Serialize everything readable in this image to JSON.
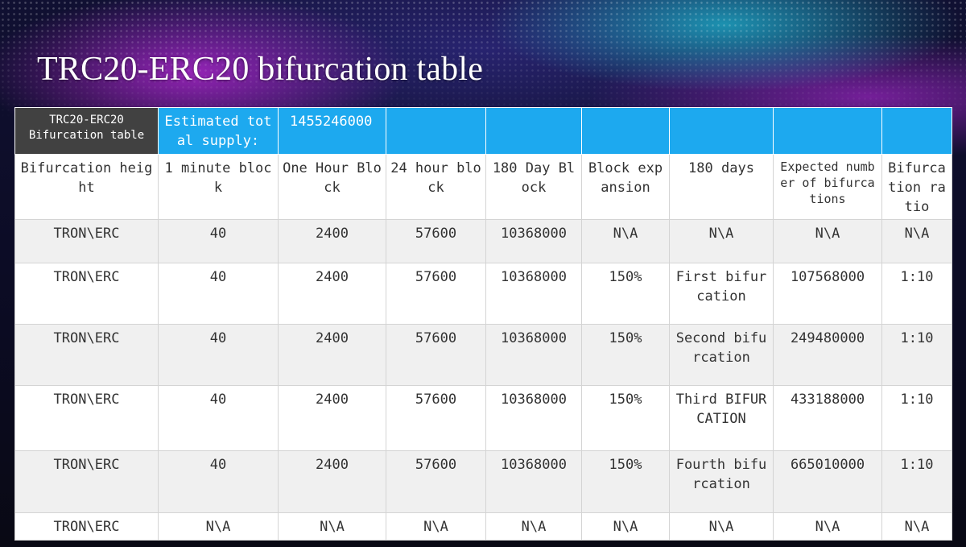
{
  "slide": {
    "title": "TRC20-ERC20 bifurcation table"
  },
  "table": {
    "header": {
      "corner_line1": "TRC20-ERC20",
      "corner_line2": "Bifurcation table",
      "estimated_label": "Estimated total supply:",
      "estimated_value": "1455246000"
    },
    "columns": [
      "Bifurcation height",
      "1 minute block",
      "One Hour Block",
      "24 hour block",
      "180 Day Block",
      "Block expansion",
      "180 days",
      "Expected number of bifurcations",
      "Bifurcation ratio"
    ],
    "rows": [
      [
        "TRON\\ERC",
        "40",
        "2400",
        "57600",
        "10368000",
        "N\\A",
        "N\\A",
        "N\\A",
        "N\\A"
      ],
      [
        "TRON\\ERC",
        "40",
        "2400",
        "57600",
        "10368000",
        "150%",
        "First bifurcation",
        "107568000",
        "1:10"
      ],
      [
        "TRON\\ERC",
        "40",
        "2400",
        "57600",
        "10368000",
        "150%",
        "Second bifurcation",
        "249480000",
        "1:10"
      ],
      [
        "TRON\\ERC",
        "40",
        "2400",
        "57600",
        "10368000",
        "150%",
        "Third BIFURCATION",
        "433188000",
        "1:10"
      ],
      [
        "TRON\\ERC",
        "40",
        "2400",
        "57600",
        "10368000",
        "150%",
        "Fourth bifurcation",
        "665010000",
        "1:10"
      ],
      [
        "TRON\\ERC",
        "N\\A",
        "N\\A",
        "N\\A",
        "N\\A",
        "N\\A",
        "N\\A",
        "N\\A",
        "N\\A"
      ]
    ]
  },
  "colors": {
    "header_blue": "#1da9ef",
    "corner_grey": "#414141",
    "row_grey": "#f0f0f0"
  }
}
